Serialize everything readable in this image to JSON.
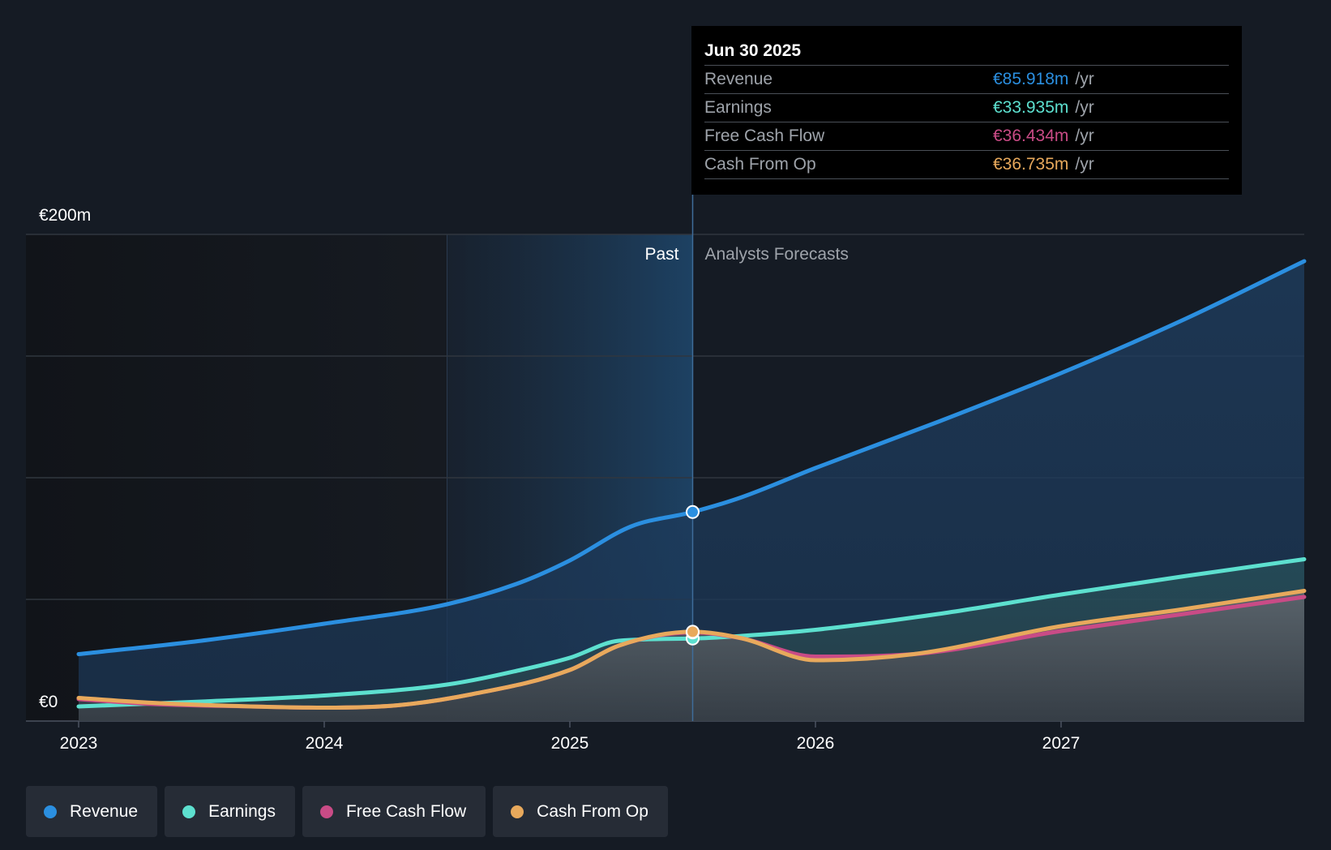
{
  "chart_data": {
    "type": "area",
    "y_unit_top_label": "€200m",
    "y_unit_bottom_label": "€0",
    "ylim": [
      0,
      200
    ],
    "xlim": [
      2023.0,
      2028.0
    ],
    "x_ticks": [
      "2023",
      "2024",
      "2025",
      "2026",
      "2027"
    ],
    "x_tick_values": [
      2023,
      2024,
      2025,
      2026,
      2027
    ],
    "grid": true,
    "past_label": "Past",
    "forecast_label": "Analysts Forecasts",
    "divider_x": 2025.5,
    "highlight_start_x": 2024.5,
    "series": [
      {
        "name": "Revenue",
        "color": "#2b8fe0",
        "x": [
          2023.0,
          2023.5,
          2024.0,
          2024.5,
          2024.8,
          2025.0,
          2025.25,
          2025.5,
          2025.7,
          2026.0,
          2026.5,
          2027.0,
          2027.5,
          2027.99
        ],
        "values": [
          27.5,
          33,
          40,
          48,
          57,
          66,
          80,
          85.9,
          92,
          104,
          123,
          143,
          165,
          189
        ]
      },
      {
        "name": "Earnings",
        "color": "#5de0cf",
        "x": [
          2023.0,
          2023.5,
          2024.0,
          2024.5,
          2024.8,
          2025.0,
          2025.2,
          2025.5,
          2025.7,
          2026.0,
          2026.5,
          2027.0,
          2027.5,
          2027.99
        ],
        "values": [
          6,
          8,
          10.5,
          15,
          21,
          26,
          33,
          33.9,
          35,
          37.5,
          44,
          52,
          59.5,
          66.5
        ]
      },
      {
        "name": "Free Cash Flow",
        "color": "#c94b86",
        "x": [
          2023.0,
          2023.3,
          2023.7,
          2024.0,
          2024.3,
          2024.6,
          2025.0,
          2025.2,
          2025.5,
          2025.7,
          2026.0,
          2026.4,
          2027.0,
          2027.5,
          2027.99
        ],
        "values": [
          9,
          7,
          6,
          5.5,
          6.5,
          11,
          21,
          31,
          36.4,
          34,
          26.5,
          27.5,
          37,
          44,
          51
        ]
      },
      {
        "name": "Cash From Op",
        "color": "#e8a95c",
        "x": [
          2023.0,
          2023.3,
          2023.7,
          2024.0,
          2024.3,
          2024.6,
          2025.0,
          2025.2,
          2025.5,
          2025.7,
          2026.0,
          2026.4,
          2027.0,
          2027.5,
          2027.99
        ],
        "values": [
          9.5,
          7.5,
          6,
          5.5,
          6.5,
          11,
          21,
          31,
          36.7,
          34,
          25,
          27.5,
          39,
          46,
          53.5
        ]
      }
    ]
  },
  "tooltip": {
    "date": "Jun 30 2025",
    "rows": [
      {
        "label": "Revenue",
        "value": "€85.918m",
        "unit": "/yr",
        "color": "#2b8fe0"
      },
      {
        "label": "Earnings",
        "value": "€33.935m",
        "unit": "/yr",
        "color": "#5de0cf"
      },
      {
        "label": "Free Cash Flow",
        "value": "€36.434m",
        "unit": "/yr",
        "color": "#c94b86"
      },
      {
        "label": "Cash From Op",
        "value": "€36.735m",
        "unit": "/yr",
        "color": "#e8a95c"
      }
    ]
  },
  "legend": [
    {
      "label": "Revenue",
      "color": "#2b8fe0"
    },
    {
      "label": "Earnings",
      "color": "#5de0cf"
    },
    {
      "label": "Free Cash Flow",
      "color": "#c94b86"
    },
    {
      "label": "Cash From Op",
      "color": "#e8a95c"
    }
  ]
}
